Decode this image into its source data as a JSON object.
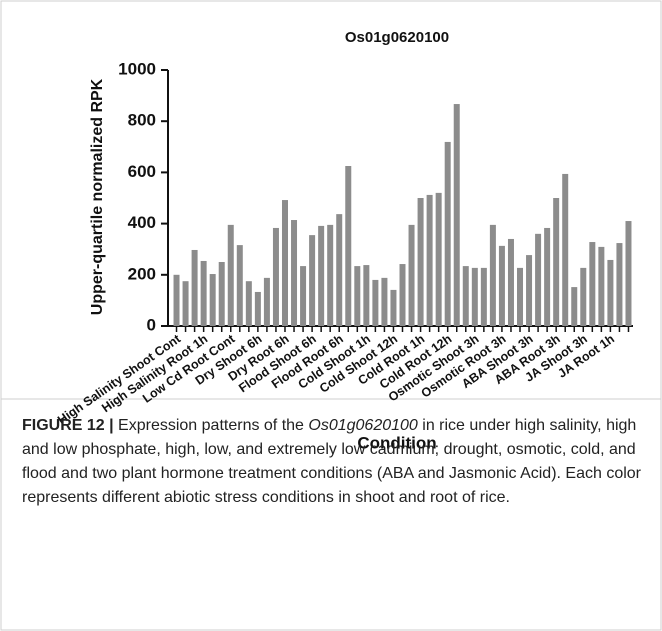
{
  "chart_data": {
    "type": "bar",
    "title": "Os01g0620100",
    "y_label": "Upper-quartile normalized RPK",
    "x_label": "Condition",
    "categories": [
      "High Salinity Shoot Cont",
      null,
      null,
      "High Salinity Root 1h",
      null,
      null,
      "Low Cd Root Cont",
      null,
      null,
      "Dry Shoot 6h",
      null,
      null,
      "Dry Root 6h",
      null,
      null,
      "Flood Shoot 6h",
      null,
      null,
      "Flood Root 6h",
      null,
      null,
      "Cold Shoot 1h",
      null,
      null,
      "Cold Shoot 12h",
      null,
      null,
      "Cold Root 1h",
      null,
      null,
      "Cold Root 12h",
      null,
      null,
      "Osmotic Shoot 3h",
      null,
      null,
      "Osmotic Root 3h",
      null,
      null,
      "ABA Shoot 3h",
      null,
      null,
      "ABA Root 3h",
      null,
      null,
      "JA Shoot 3h",
      null,
      null,
      "JA Root 1h",
      null,
      null
    ],
    "values": [
      200,
      175,
      297,
      254,
      203,
      250,
      395,
      316,
      175,
      133,
      188,
      383,
      492,
      414,
      234,
      355,
      391,
      395,
      437,
      625,
      234,
      238,
      180,
      188,
      141,
      242,
      395,
      500,
      512,
      520,
      719,
      867,
      234,
      227,
      227,
      395,
      313,
      340,
      227,
      277,
      360,
      383,
      500,
      594,
      152,
      227,
      328,
      309,
      258,
      324,
      410
    ],
    "color": "#8c8c8c",
    "ylim": [
      0,
      1000
    ],
    "yticks": [
      0,
      200,
      400,
      600,
      800,
      1000
    ]
  },
  "caption": {
    "label": "FIGURE 12 |",
    "text_1": " Expression patterns of the ",
    "gene": "Os01g0620100",
    "text_2": " in rice under high salinity, high and low phosphate, high, low, and extremely low cadmium; drought, osmotic, cold, and flood and two plant hormone treatment conditions (ABA and Jasmonic Acid). Each color represents different abiotic stress conditions in shoot and root of rice."
  }
}
